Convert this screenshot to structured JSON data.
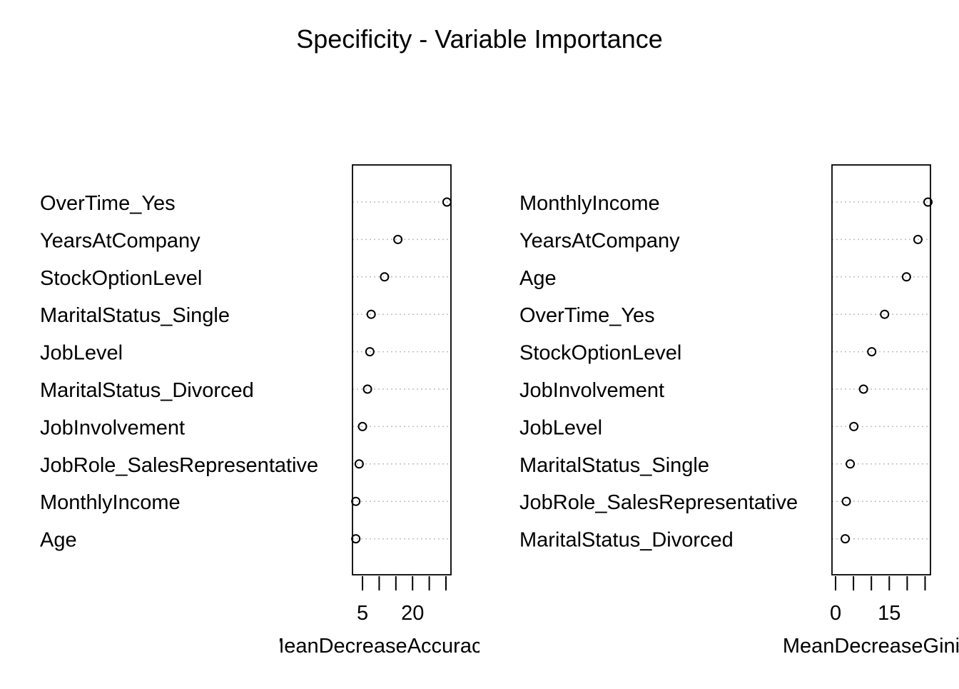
{
  "title": "Specificity - Variable Importance",
  "chart_data": [
    {
      "type": "scatter",
      "subtype": "dotchart",
      "xlabel": "MeanDecreaseAccuracy",
      "xlim": [
        2,
        31.5
      ],
      "xticks": [
        5,
        10,
        15,
        20,
        25,
        30
      ],
      "xticklabels": [
        "5",
        "",
        "",
        "20",
        "",
        ""
      ],
      "grid": "dotted horizontal",
      "categories": [
        "OverTime_Yes",
        "YearsAtCompany",
        "StockOptionLevel",
        "MaritalStatus_Single",
        "JobLevel",
        "MaritalStatus_Divorced",
        "JobInvolvement",
        "JobRole_SalesRepresentative",
        "MonthlyIncome",
        "Age"
      ],
      "values": [
        30.3,
        15.6,
        11.6,
        7.6,
        7.2,
        6.5,
        5.0,
        4.0,
        3.0,
        3.0
      ]
    },
    {
      "type": "scatter",
      "subtype": "dotchart",
      "xlabel": "MeanDecreaseGini",
      "xlim": [
        -1,
        26.5
      ],
      "xticks": [
        0,
        5,
        10,
        15,
        20,
        25
      ],
      "xticklabels": [
        "0",
        "",
        "",
        "15",
        "",
        ""
      ],
      "grid": "dotted horizontal",
      "categories": [
        "MonthlyIncome",
        "YearsAtCompany",
        "Age",
        "OverTime_Yes",
        "StockOptionLevel",
        "JobInvolvement",
        "JobLevel",
        "MaritalStatus_Single",
        "JobRole_SalesRepresentative",
        "MaritalStatus_Divorced"
      ],
      "values": [
        25.8,
        23.0,
        19.8,
        13.7,
        10.1,
        7.8,
        5.1,
        4.1,
        3.0,
        2.7
      ]
    }
  ]
}
